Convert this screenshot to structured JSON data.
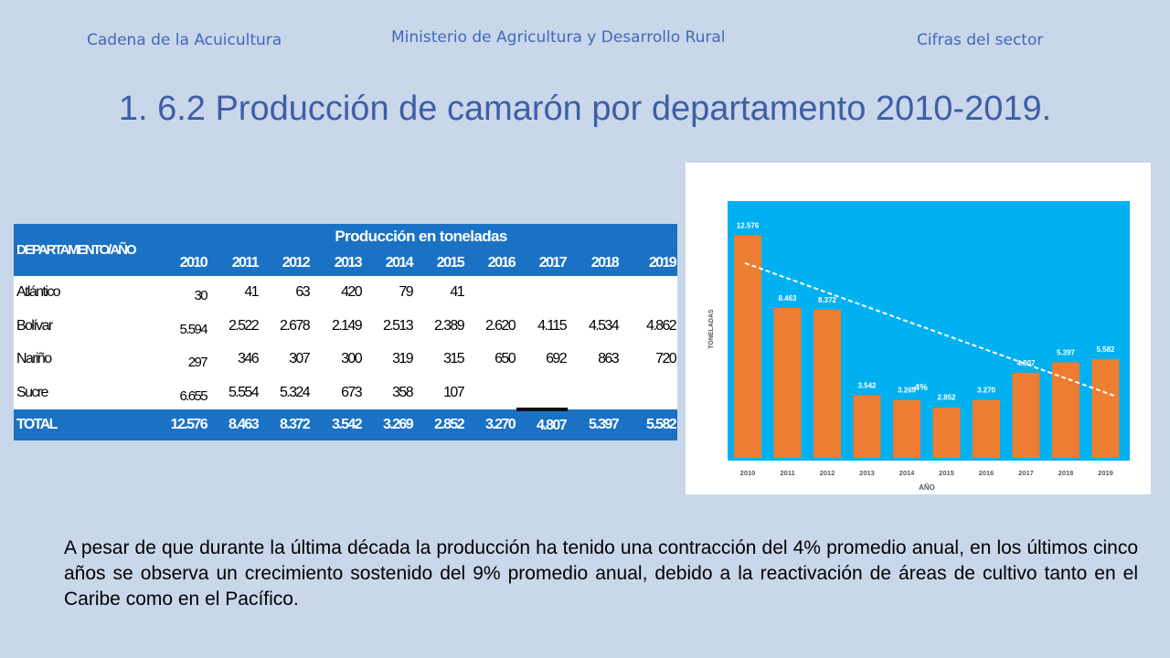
{
  "header": {
    "left": "Cadena de la Acuicultura",
    "center": "Ministerio de Agricultura y Desarrollo Rural",
    "right": "Cifras del sector"
  },
  "title": "1. 6.2 Producción de camarón por departamento 2010-2019.",
  "table": {
    "dept_header": "DEPARTAMENTO/AÑO",
    "group_header": "Producción en toneladas",
    "years": [
      "2010",
      "2011",
      "2012",
      "2013",
      "2014",
      "2015",
      "2016",
      "2017",
      "2018",
      "2019"
    ],
    "rows": [
      {
        "name": "Atlántico",
        "values": [
          "30",
          "41",
          "63",
          "420",
          "79",
          "41",
          "",
          "",
          "",
          ""
        ]
      },
      {
        "name": "Bolívar",
        "values": [
          "5.594",
          "2.522",
          "2.678",
          "2.149",
          "2.513",
          "2.389",
          "2.620",
          "4.115",
          "4.534",
          "4.862"
        ]
      },
      {
        "name": "Nariño",
        "values": [
          "297",
          "346",
          "307",
          "300",
          "319",
          "315",
          "650",
          "692",
          "863",
          "720"
        ]
      },
      {
        "name": "Sucre",
        "values": [
          "6.655",
          "5.554",
          "5.324",
          "673",
          "358",
          "107",
          "",
          "",
          "",
          ""
        ]
      }
    ],
    "total": {
      "name": "TOTAL",
      "values": [
        "12.576",
        "8.463",
        "8.372",
        "3.542",
        "3.269",
        "2.852",
        "3.270",
        "4.807",
        "5.397",
        "5.582"
      ]
    }
  },
  "chart_data": {
    "type": "bar",
    "categories": [
      "2010",
      "2011",
      "2012",
      "2013",
      "2014",
      "2015",
      "2016",
      "2017",
      "2018",
      "2019"
    ],
    "values": [
      12576,
      8463,
      8372,
      3542,
      3269,
      2852,
      3270,
      4807,
      5397,
      5582
    ],
    "value_labels": [
      "12.576",
      "8.463",
      "8.372",
      "3.542",
      "3.269",
      "2.852",
      "3.270",
      "4.807",
      "5.397",
      "5.582"
    ],
    "xlabel": "AÑO",
    "ylabel": "TONELADAS",
    "trend_label": "-4%",
    "trend": {
      "start": 11000,
      "end": 3500
    },
    "ylim": [
      0,
      14500
    ],
    "grid": false,
    "colors": {
      "plot_bg": "#00b0f0",
      "bar": "#ed7d31",
      "trend": "#ffffff"
    }
  },
  "paragraph": "A pesar de que durante la última década la producción ha tenido una contracción del 4% promedio anual, en los últimos cinco años se observa un crecimiento sostenido del 9% promedio anual, debido a la reactivación de áreas de cultivo tanto en el Caribe como en el Pacífico."
}
